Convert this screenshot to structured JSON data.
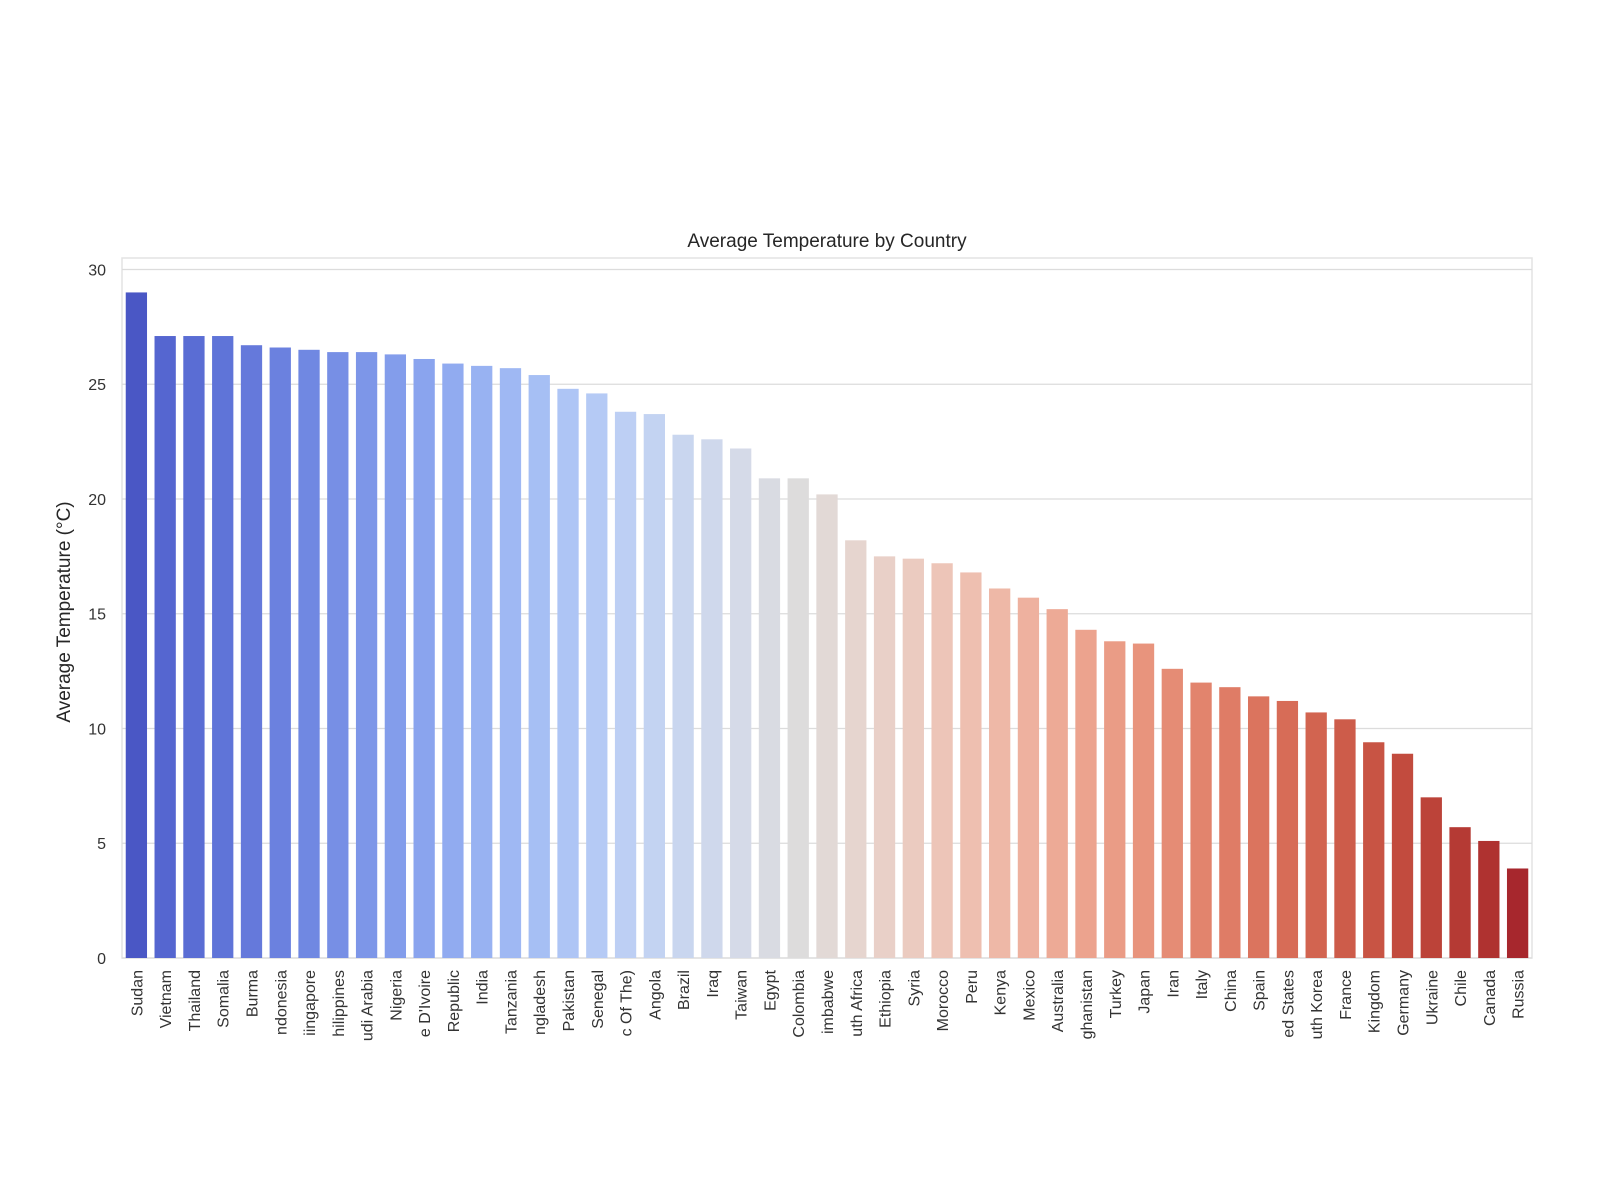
{
  "chart_data": {
    "type": "bar",
    "title": "Average Temperature by Country",
    "xlabel": "",
    "ylabel": "Average Temperature (°C)",
    "ylim": [
      0,
      30.5
    ],
    "yticks": [
      0,
      5,
      10,
      15,
      20,
      25,
      30
    ],
    "grid": true,
    "legend": "none",
    "colormap": "coolwarm",
    "categories": [
      "Sudan",
      "Vietnam",
      "Thailand",
      "Somalia",
      "Burma",
      "ndonesia",
      "iingapore",
      "hilippines",
      "udi Arabia",
      "Nigeria",
      "e D'Ivoire",
      "Republic",
      "India",
      "Tanzania",
      "ngladesh",
      "Pakistan",
      "Senegal",
      "c Of The)",
      "Angola",
      "Brazil",
      "Iraq",
      "Taiwan",
      "Egypt",
      "Colombia",
      "imbabwe",
      "uth Africa",
      "Ethiopia",
      "Syria",
      "Morocco",
      "Peru",
      "Kenya",
      "Mexico",
      "Australia",
      "ghanistan",
      "Turkey",
      "Japan",
      "Iran",
      "Italy",
      "China",
      "Spain",
      "ed States",
      "uth Korea",
      "France",
      "Kingdom",
      "Germany",
      "Ukraine",
      "Chile",
      "Canada",
      "Russia"
    ],
    "values": [
      29.0,
      27.1,
      27.1,
      27.1,
      26.7,
      26.6,
      26.5,
      26.4,
      26.4,
      26.3,
      26.1,
      25.9,
      25.8,
      25.7,
      25.4,
      24.8,
      24.6,
      23.8,
      23.7,
      22.8,
      22.6,
      22.2,
      20.9,
      20.9,
      20.2,
      18.2,
      17.5,
      17.4,
      17.2,
      16.8,
      16.1,
      15.7,
      15.2,
      14.3,
      13.8,
      13.7,
      12.6,
      12.0,
      11.8,
      11.4,
      11.2,
      10.7,
      10.4,
      9.4,
      8.9,
      7.0,
      5.7,
      5.1,
      3.9
    ],
    "colors": [
      "#4a57c5",
      "#5566d0",
      "#5a6dd4",
      "#5f74d8",
      "#6579db",
      "#6b81df",
      "#7088e2",
      "#778fe5",
      "#7d96e8",
      "#839deb",
      "#8aa4ee",
      "#91abf0",
      "#98b2f2",
      "#9fb8f3",
      "#a6bff4",
      "#aec5f5",
      "#b5caf5",
      "#bdcff4",
      "#c3d3f2",
      "#c9d6ef",
      "#cfd8ec",
      "#d5dae8",
      "#d9dbe2",
      "#dddcdc",
      "#e2d9d6",
      "#e6d5cf",
      "#e9d0c8",
      "#ebcbc0",
      "#edc5b8",
      "#eebfb0",
      "#eeb8a7",
      "#eeb19f",
      "#edaa96",
      "#eca38e",
      "#ea9c86",
      "#e8947d",
      "#e58c75",
      "#e2846d",
      "#df7c66",
      "#db745e",
      "#d76c57",
      "#d26450",
      "#cd5c4a",
      "#c85444",
      "#c24b3e",
      "#bc4339",
      "#b53a34",
      "#af3230",
      "#a7272d"
    ]
  }
}
